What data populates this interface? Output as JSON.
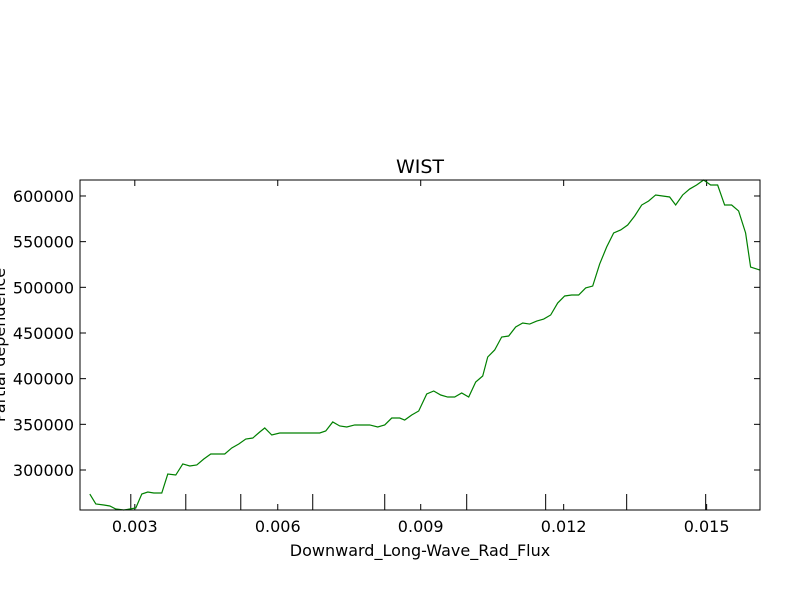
{
  "chart_data": {
    "type": "line",
    "title": "WIST",
    "xlabel": "Downward_Long-Wave_Rad_Flux",
    "ylabel": "Partial dependence",
    "x": [
      0.002056,
      0.002182,
      0.00235,
      0.002476,
      0.002601,
      0.002769,
      0.002895,
      0.003021,
      0.003147,
      0.003273,
      0.003399,
      0.003566,
      0.003692,
      0.00386,
      0.004007,
      0.004154,
      0.004301,
      0.004448,
      0.004594,
      0.004741,
      0.004888,
      0.005035,
      0.005182,
      0.005329,
      0.005476,
      0.005622,
      0.005727,
      0.005874,
      0.006042,
      0.006252,
      0.006462,
      0.006671,
      0.006881,
      0.007007,
      0.007154,
      0.007301,
      0.007448,
      0.007615,
      0.007762,
      0.00793,
      0.008098,
      0.008245,
      0.008392,
      0.008559,
      0.008664,
      0.008811,
      0.008958,
      0.009126,
      0.009273,
      0.00942,
      0.009566,
      0.009713,
      0.00986,
      0.010007,
      0.010154,
      0.010301,
      0.010406,
      0.010552,
      0.010699,
      0.010846,
      0.010993,
      0.01114,
      0.011287,
      0.011434,
      0.011581,
      0.011727,
      0.011874,
      0.012021,
      0.012168,
      0.012315,
      0.012462,
      0.012609,
      0.012755,
      0.012902,
      0.013049,
      0.013196,
      0.013343,
      0.01349,
      0.013637,
      0.013783,
      0.01393,
      0.014077,
      0.014224,
      0.01435,
      0.014497,
      0.014643,
      0.01479,
      0.014937,
      0.015084,
      0.015231,
      0.015378,
      0.015525,
      0.015671,
      0.015818,
      0.015923,
      0.016112
    ],
    "series": [
      {
        "name": "WIST",
        "color": "#008000",
        "values": [
          273700,
          262800,
          261700,
          260600,
          257300,
          256200,
          257300,
          258400,
          273700,
          275900,
          274800,
          274800,
          295600,
          294500,
          306600,
          304400,
          305500,
          312000,
          317500,
          317500,
          317500,
          324100,
          328500,
          333900,
          335000,
          341600,
          346000,
          338300,
          340500,
          340500,
          340500,
          340500,
          340500,
          342700,
          352600,
          348200,
          347100,
          349300,
          349300,
          349300,
          347100,
          349300,
          356900,
          356900,
          354700,
          360200,
          364600,
          383200,
          386500,
          382100,
          379900,
          379900,
          384300,
          379900,
          396300,
          402900,
          423700,
          431400,
          445600,
          446700,
          456600,
          460900,
          459800,
          463100,
          465300,
          469700,
          482800,
          490500,
          491600,
          491600,
          499300,
          501400,
          525500,
          544100,
          559500,
          562800,
          568200,
          578100,
          590100,
          594500,
          601100,
          600000,
          598900,
          590100,
          601100,
          607600,
          612000,
          617500,
          612000,
          612000,
          590100,
          590100,
          583600,
          559500,
          522200,
          519000
        ]
      }
    ],
    "deciles": [
      0.002916,
      0.00407,
      0.005224,
      0.006734,
      0.008245,
      0.009965,
      0.011622,
      0.013322,
      0.01498
    ],
    "xlim": [
      0.00185,
      0.01612
    ],
    "ylim": [
      256200,
      617500
    ],
    "xticks": [
      0.003,
      0.006,
      0.009,
      0.012,
      0.015
    ],
    "yticks": [
      300000,
      350000,
      400000,
      450000,
      500000,
      550000,
      600000
    ]
  }
}
